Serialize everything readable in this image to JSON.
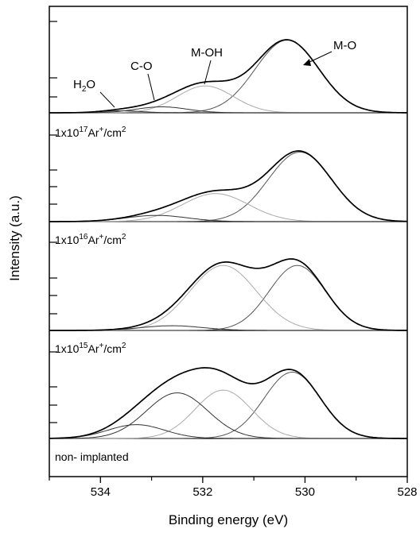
{
  "chart_data": {
    "type": "line",
    "xlabel": "Binding energy (eV)",
    "ylabel": "Intensity (a.u.)",
    "xlim": [
      535,
      528
    ],
    "x_ticks": [
      "534",
      "532",
      "530",
      "528"
    ],
    "x_tick_values": [
      534,
      532,
      530,
      528
    ],
    "grid": false,
    "peak_labels": {
      "h2o_main": "H",
      "h2o_sub": "2",
      "h2o_end": "O",
      "co": "C-O",
      "moh": "M-OH",
      "mo": "M-O"
    },
    "panel_labels": [
      {
        "prefix": "1x10",
        "exp": "17",
        "mid": "Ar",
        "sup": "+",
        "suffix": "/cm",
        "sup2": "2"
      },
      {
        "prefix": "1x10",
        "exp": "16",
        "mid": "Ar",
        "sup": "+",
        "suffix": "/cm",
        "sup2": "2"
      },
      {
        "prefix": "1x10",
        "exp": "15",
        "mid": "Ar",
        "sup": "+",
        "suffix": "/cm",
        "sup2": "2"
      },
      {
        "text": "non- implanted"
      }
    ],
    "panels": [
      {
        "name": "top",
        "components": [
          {
            "center": 530.35,
            "amp": 0.73,
            "sigma": 0.62,
            "color": "#555555"
          },
          {
            "center": 531.95,
            "amp": 0.27,
            "sigma": 0.55,
            "color": "#aaaaaa"
          },
          {
            "center": 532.8,
            "amp": 0.06,
            "sigma": 0.5,
            "color": "#333333"
          },
          {
            "center": 533.6,
            "amp": 0.02,
            "sigma": 0.4,
            "color": "#333333"
          }
        ]
      },
      {
        "name": "1e17",
        "components": [
          {
            "center": 530.1,
            "amp": 0.67,
            "sigma": 0.62,
            "color": "#555555"
          },
          {
            "center": 531.75,
            "amp": 0.27,
            "sigma": 0.65,
            "color": "#aaaaaa"
          },
          {
            "center": 532.9,
            "amp": 0.06,
            "sigma": 0.6,
            "color": "#333333"
          }
        ]
      },
      {
        "name": "1e16",
        "components": [
          {
            "center": 530.15,
            "amp": 0.55,
            "sigma": 0.55,
            "color": "#555555"
          },
          {
            "center": 531.6,
            "amp": 0.55,
            "sigma": 0.65,
            "color": "#aaaaaa"
          },
          {
            "center": 532.6,
            "amp": 0.04,
            "sigma": 0.6,
            "color": "#333333"
          }
        ]
      },
      {
        "name": "1e15",
        "components": [
          {
            "center": 530.25,
            "amp": 0.48,
            "sigma": 0.55,
            "color": "#555555"
          },
          {
            "center": 531.6,
            "amp": 0.35,
            "sigma": 0.55,
            "color": "#aaaaaa"
          },
          {
            "center": 532.5,
            "amp": 0.33,
            "sigma": 0.6,
            "color": "#333333"
          },
          {
            "center": 533.3,
            "amp": 0.1,
            "sigma": 0.55,
            "color": "#333333"
          }
        ]
      }
    ]
  }
}
